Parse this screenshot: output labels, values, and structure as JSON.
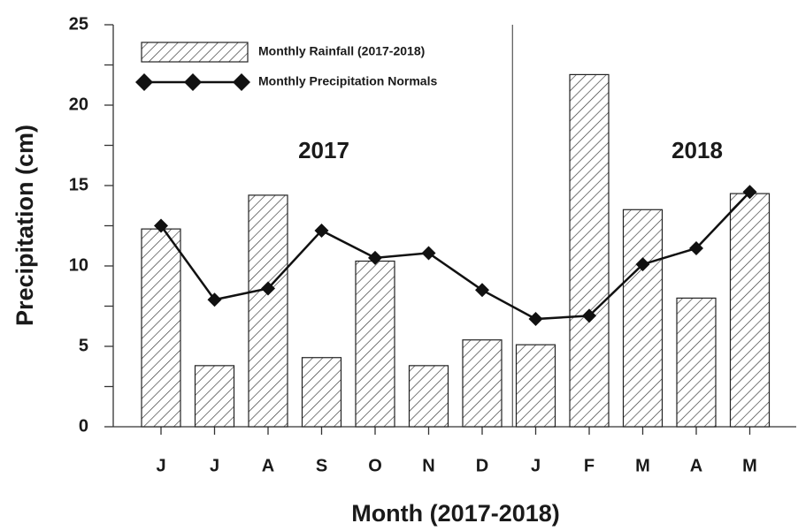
{
  "chart_data": {
    "type": "bar",
    "categories": [
      "J",
      "J",
      "A",
      "S",
      "O",
      "N",
      "D",
      "J",
      "F",
      "M",
      "A",
      "M"
    ],
    "series": [
      {
        "name": "Monthly Rainfall (2017-2018)",
        "type": "bar",
        "color": "#222222",
        "values": [
          12.3,
          3.8,
          14.4,
          4.3,
          10.3,
          3.8,
          5.4,
          5.1,
          21.9,
          13.5,
          8.0,
          14.5
        ]
      },
      {
        "name": "Monthly Precipitation Normals",
        "type": "line",
        "color": "#111111",
        "values": [
          12.5,
          7.9,
          8.6,
          12.2,
          10.5,
          10.8,
          8.5,
          6.7,
          6.9,
          10.1,
          11.1,
          14.6
        ]
      }
    ],
    "annotations": [
      "2017",
      "2018"
    ],
    "xlabel": "Month (2017-2018)",
    "ylabel": "Precipitation (cm)",
    "ylim": [
      0,
      25
    ],
    "yticks": [
      0,
      5,
      10,
      15,
      20,
      25
    ],
    "yticks_minor": [
      2.5,
      7.5,
      12.5,
      17.5,
      22.5
    ],
    "grid": false
  }
}
